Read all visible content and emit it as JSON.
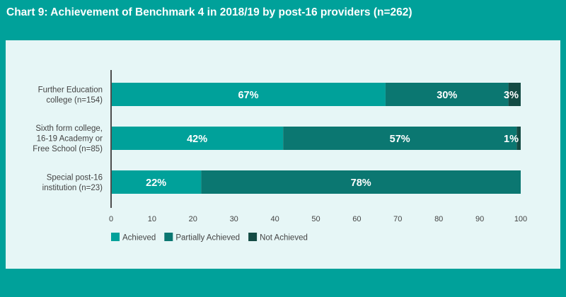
{
  "title": "Chart 9: Achievement of Benchmark 4 in 2018/19 by post-16 providers (n=262)",
  "chart_data": {
    "type": "bar",
    "orientation": "horizontal",
    "stacked": true,
    "categories": [
      [
        "Further Education",
        "college (n=154)"
      ],
      [
        "Sixth form college,",
        "16-19 Academy or",
        "Free School (n=85)"
      ],
      [
        "Special post-16",
        "institution (n=23)"
      ]
    ],
    "series": [
      {
        "name": "Achieved",
        "values": [
          67,
          42,
          22
        ],
        "labels": [
          "67%",
          "42%",
          "22%"
        ],
        "color": "#00a19a"
      },
      {
        "name": "Partially Achieved",
        "values": [
          30,
          57,
          78
        ],
        "labels": [
          "30%",
          "57%",
          "78%"
        ],
        "color": "#0b7771"
      },
      {
        "name": "Not Achieved",
        "values": [
          3,
          1,
          0
        ],
        "labels": [
          "3%",
          "1%",
          ""
        ],
        "color": "#144b44"
      }
    ],
    "xlim": [
      0,
      100
    ],
    "xticks": [
      "0",
      "10",
      "20",
      "30",
      "40",
      "50",
      "60",
      "70",
      "80",
      "90",
      "100"
    ],
    "grid": false,
    "legend_position": "bottom-left"
  },
  "colors": {
    "background": "#00a19a",
    "panel": "#e6f6f6",
    "axis": "#555555",
    "text": "#444444"
  }
}
